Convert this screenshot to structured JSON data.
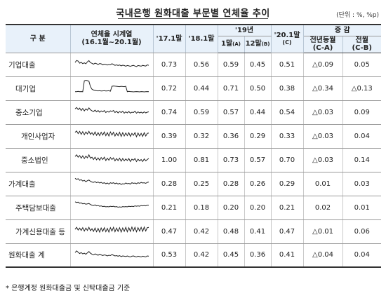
{
  "title": "국내은행 원화대출 부문별 연체율 추이",
  "unit": "(단위 : %, %p)",
  "header": {
    "category": "구 분",
    "series_col": "연체율 시계열",
    "series_range": "(16.1월~20.1월)",
    "col_1701": "'17.1말",
    "col_1801": "'18.1말",
    "year_19": "'19년",
    "m1": "1말",
    "m1_tag": "(A)",
    "m12": "12말",
    "m12_tag": "(B)",
    "col_2001": "'20.1말",
    "col_2001_tag": "(C)",
    "change": "증 감",
    "yoy": "전년동월",
    "yoy_tag": "(C-A)",
    "mom": "전월",
    "mom_tag": "(C-B)"
  },
  "rows": [
    {
      "label": "기업대출",
      "v1701": "0.73",
      "v1801": "0.56",
      "a": "0.59",
      "b": "0.45",
      "c": "0.51",
      "ca": "△0.09",
      "cb": "0.05",
      "spark": [
        0.62,
        0.74,
        0.7,
        0.58,
        0.63,
        0.55,
        0.6,
        0.54,
        0.66,
        0.73,
        0.61,
        0.57,
        0.52,
        0.58,
        0.55,
        0.5,
        0.56,
        0.54,
        0.48,
        0.52,
        0.5,
        0.47,
        0.5,
        0.48,
        0.55,
        0.5,
        0.45,
        0.48,
        0.44,
        0.47,
        0.42,
        0.46,
        0.44,
        0.4,
        0.44,
        0.42,
        0.39,
        0.43,
        0.45,
        0.41,
        0.38,
        0.44,
        0.42,
        0.4,
        0.45,
        0.43,
        0.41,
        0.48,
        0.45
      ]
    },
    {
      "label": "대기업",
      "v1701": "0.72",
      "v1801": "0.44",
      "a": "0.71",
      "b": "0.50",
      "c": "0.38",
      "ca": "△0.34",
      "cb": "△0.13",
      "spark": [
        0.3,
        0.3,
        0.32,
        0.3,
        0.31,
        0.3,
        0.95,
        0.98,
        0.96,
        0.92,
        0.6,
        0.45,
        0.4,
        0.38,
        0.36,
        0.35,
        0.36,
        0.34,
        0.35,
        0.36,
        0.34,
        0.35,
        0.36,
        0.33,
        0.62,
        0.64,
        0.63,
        0.62,
        0.61,
        0.6,
        0.62,
        0.61,
        0.6,
        0.62,
        0.3,
        0.32,
        0.31,
        0.3,
        0.29,
        0.3,
        0.31,
        0.3,
        0.29,
        0.31,
        0.3,
        0.29,
        0.3,
        0.31,
        0.3
      ]
    },
    {
      "label": "중소기업",
      "v1701": "0.74",
      "v1801": "0.59",
      "a": "0.57",
      "b": "0.44",
      "c": "0.54",
      "ca": "△0.03",
      "cb": "0.09",
      "spark": [
        0.7,
        0.78,
        0.66,
        0.74,
        0.6,
        0.72,
        0.58,
        0.7,
        0.62,
        0.76,
        0.64,
        0.58,
        0.54,
        0.62,
        0.52,
        0.6,
        0.5,
        0.58,
        0.52,
        0.6,
        0.48,
        0.56,
        0.5,
        0.58,
        0.54,
        0.6,
        0.48,
        0.56,
        0.46,
        0.54,
        0.48,
        0.56,
        0.44,
        0.52,
        0.46,
        0.54,
        0.44,
        0.5,
        0.48,
        0.56,
        0.44,
        0.52,
        0.46,
        0.5,
        0.44,
        0.52,
        0.46,
        0.5,
        0.52
      ]
    },
    {
      "label": "개인사업자",
      "v1701": "0.39",
      "v1801": "0.32",
      "a": "0.36",
      "b": "0.29",
      "c": "0.33",
      "ca": "△0.03",
      "cb": "0.04",
      "spark": [
        0.72,
        0.8,
        0.64,
        0.78,
        0.6,
        0.76,
        0.58,
        0.74,
        0.62,
        0.78,
        0.6,
        0.7,
        0.56,
        0.74,
        0.54,
        0.7,
        0.52,
        0.72,
        0.56,
        0.74,
        0.52,
        0.7,
        0.5,
        0.74,
        0.56,
        0.72,
        0.5,
        0.68,
        0.52,
        0.72,
        0.48,
        0.7,
        0.5,
        0.68,
        0.52,
        0.7,
        0.48,
        0.66,
        0.54,
        0.7,
        0.46,
        0.68,
        0.5,
        0.66,
        0.48,
        0.7,
        0.5,
        0.66,
        0.68
      ]
    },
    {
      "label": "중소법인",
      "v1701": "1.00",
      "v1801": "0.81",
      "a": "0.73",
      "b": "0.57",
      "c": "0.70",
      "ca": "△0.03",
      "cb": "0.14",
      "spark": [
        0.7,
        0.8,
        0.66,
        0.76,
        0.6,
        0.74,
        0.58,
        0.72,
        0.62,
        0.8,
        0.6,
        0.66,
        0.52,
        0.66,
        0.5,
        0.62,
        0.48,
        0.64,
        0.52,
        0.66,
        0.46,
        0.6,
        0.48,
        0.64,
        0.52,
        0.62,
        0.44,
        0.58,
        0.46,
        0.6,
        0.42,
        0.58,
        0.44,
        0.56,
        0.46,
        0.58,
        0.4,
        0.54,
        0.48,
        0.58,
        0.4,
        0.54,
        0.44,
        0.52,
        0.4,
        0.56,
        0.44,
        0.52,
        0.58
      ]
    },
    {
      "label": "가계대출",
      "v1701": "0.28",
      "v1801": "0.25",
      "a": "0.28",
      "b": "0.26",
      "c": "0.29",
      "ca": "0.01",
      "cb": "0.03",
      "spark": [
        0.82,
        0.76,
        0.8,
        0.7,
        0.74,
        0.66,
        0.7,
        0.62,
        0.68,
        0.72,
        0.64,
        0.6,
        0.58,
        0.62,
        0.56,
        0.6,
        0.54,
        0.58,
        0.52,
        0.56,
        0.5,
        0.54,
        0.48,
        0.56,
        0.52,
        0.56,
        0.5,
        0.54,
        0.48,
        0.52,
        0.46,
        0.5,
        0.48,
        0.54,
        0.5,
        0.52,
        0.48,
        0.56,
        0.52,
        0.54,
        0.5,
        0.56,
        0.52,
        0.58,
        0.54,
        0.56,
        0.52,
        0.58,
        0.6
      ]
    },
    {
      "label": "주택담보대출",
      "v1701": "0.21",
      "v1801": "0.18",
      "a": "0.20",
      "b": "0.20",
      "c": "0.21",
      "ca": "0.02",
      "cb": "0.01",
      "spark": [
        0.84,
        0.8,
        0.82,
        0.76,
        0.78,
        0.72,
        0.74,
        0.7,
        0.72,
        0.74,
        0.68,
        0.64,
        0.62,
        0.66,
        0.6,
        0.62,
        0.58,
        0.6,
        0.56,
        0.58,
        0.54,
        0.56,
        0.54,
        0.58,
        0.56,
        0.58,
        0.54,
        0.56,
        0.52,
        0.54,
        0.52,
        0.56,
        0.54,
        0.56,
        0.54,
        0.58,
        0.56,
        0.58,
        0.56,
        0.6,
        0.58,
        0.6,
        0.58,
        0.62,
        0.6,
        0.62,
        0.6,
        0.64,
        0.64
      ]
    },
    {
      "label": "가계신용대출 등",
      "v1701": "0.47",
      "v1801": "0.42",
      "a": "0.48",
      "b": "0.41",
      "c": "0.47",
      "ca": "△0.01",
      "cb": "0.06",
      "spark": [
        0.62,
        0.74,
        0.58,
        0.7,
        0.56,
        0.72,
        0.52,
        0.7,
        0.56,
        0.74,
        0.54,
        0.66,
        0.5,
        0.7,
        0.48,
        0.68,
        0.46,
        0.7,
        0.5,
        0.72,
        0.48,
        0.68,
        0.46,
        0.72,
        0.52,
        0.74,
        0.48,
        0.7,
        0.5,
        0.72,
        0.46,
        0.7,
        0.5,
        0.74,
        0.48,
        0.72,
        0.5,
        0.76,
        0.52,
        0.74,
        0.48,
        0.72,
        0.52,
        0.74,
        0.5,
        0.76,
        0.52,
        0.72,
        0.74
      ]
    },
    {
      "label": "원화대출 계",
      "v1701": "0.53",
      "v1801": "0.42",
      "a": "0.45",
      "b": "0.36",
      "c": "0.41",
      "ca": "△0.04",
      "cb": "0.04",
      "spark": [
        0.66,
        0.76,
        0.68,
        0.6,
        0.66,
        0.58,
        0.62,
        0.56,
        0.64,
        0.72,
        0.62,
        0.56,
        0.52,
        0.58,
        0.54,
        0.5,
        0.56,
        0.52,
        0.48,
        0.52,
        0.5,
        0.46,
        0.5,
        0.48,
        0.54,
        0.5,
        0.46,
        0.48,
        0.44,
        0.48,
        0.42,
        0.46,
        0.44,
        0.42,
        0.46,
        0.42,
        0.4,
        0.44,
        0.46,
        0.42,
        0.4,
        0.44,
        0.42,
        0.4,
        0.44,
        0.42,
        0.4,
        0.46,
        0.44
      ]
    }
  ],
  "footnote": "* 은행계정 원화대출금 및 신탁대출금 기준",
  "colors": {
    "header_bg": "#e8f1fa",
    "line": "#222222"
  }
}
